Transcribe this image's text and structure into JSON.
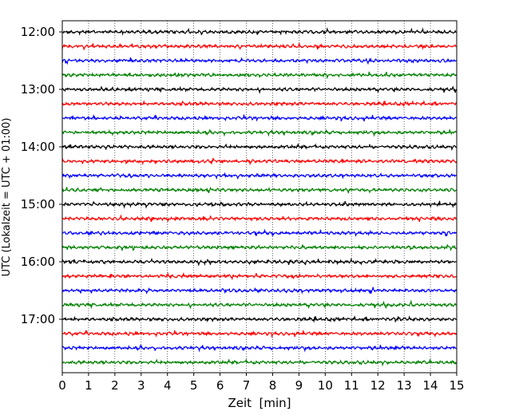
{
  "chart_data": {
    "type": "line",
    "title": "",
    "xlabel": "Zeit  [min]",
    "ylabel": "UTC (Lokalzeit = UTC + 01:00)",
    "xlim": [
      0,
      15
    ],
    "x_ticks": [
      0,
      1,
      2,
      3,
      4,
      5,
      6,
      7,
      8,
      9,
      10,
      11,
      12,
      13,
      14,
      15
    ],
    "x_tick_labels": [
      "0",
      "1",
      "2",
      "3",
      "4",
      "5",
      "6",
      "7",
      "8",
      "9",
      "10",
      "11",
      "12",
      "13",
      "14",
      "15"
    ],
    "y_axis": "time of day, one trace per 15-minute interval, increasing downward",
    "y_tick_labels": [
      "12:00",
      "13:00",
      "14:00",
      "15:00",
      "16:00",
      "17:00"
    ],
    "grid": "vertical dotted lines at each minute",
    "trace_start_times": [
      "12:00",
      "12:15",
      "12:30",
      "12:45",
      "13:00",
      "13:15",
      "13:30",
      "13:45",
      "14:00",
      "14:15",
      "14:30",
      "14:45",
      "15:00",
      "15:15",
      "15:30",
      "15:45",
      "16:00",
      "16:15",
      "16:30",
      "16:45",
      "17:00",
      "17:15",
      "17:30",
      "17:45"
    ],
    "trace_color_cycle": [
      "#000000",
      "#ff0000",
      "#0000ff",
      "#008000"
    ],
    "trace_duration_min": 15
  }
}
